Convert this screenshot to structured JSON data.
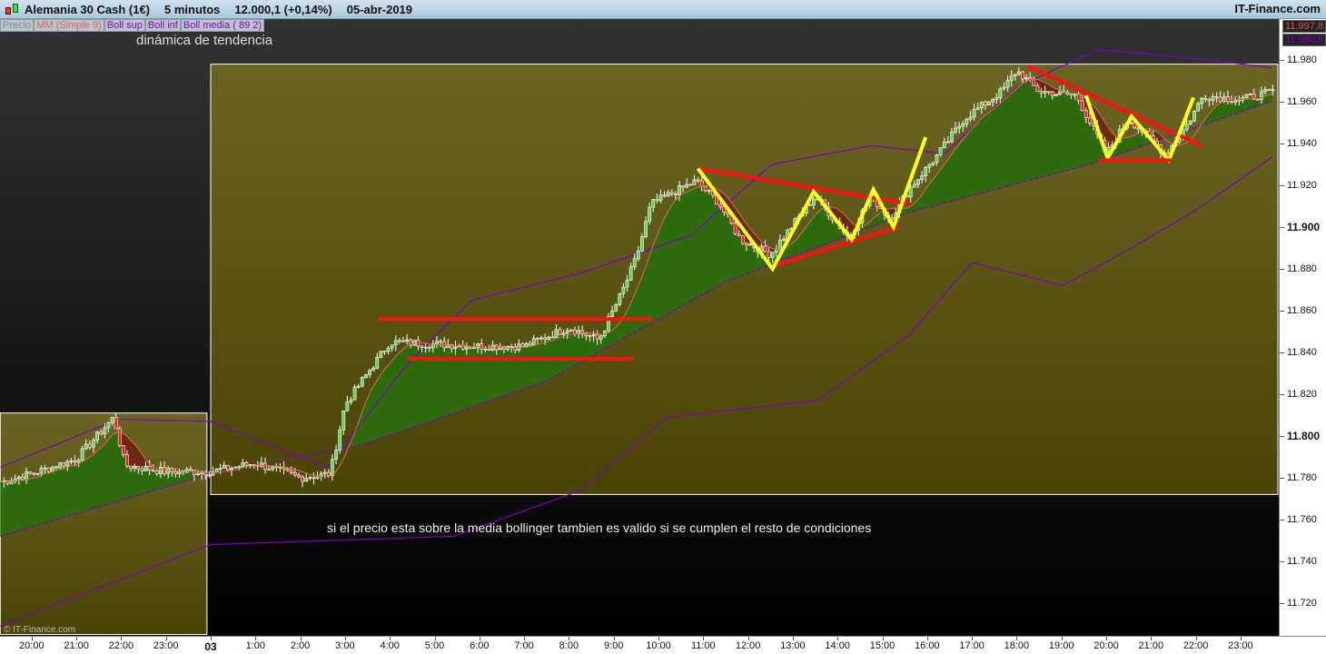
{
  "header": {
    "instrument": "Alemania 30 Cash (1€)",
    "timeframe": "5 minutos",
    "quote": "12.000,1 (+0,14%)",
    "date": "05-abr-2019",
    "brand": "IT-Finance.com",
    "icon": "candlestick-icon"
  },
  "legend": [
    {
      "label": "Precio",
      "color": "#8a8a8a"
    },
    {
      "label": "MM (Simple 9)",
      "color": "#e86060"
    },
    {
      "label": "Boll sup",
      "color": "#8a00c8"
    },
    {
      "label": "Boll inf",
      "color": "#8a00c8"
    },
    {
      "label": "Boll media ( 89 2)",
      "color": "#8a00c8"
    }
  ],
  "annotations": {
    "title_text": "dinámica de tendencia",
    "note": "si el precio esta sobre la media bollinger tambien es valido si se cumplen el resto de condiciones",
    "watermark": "© IT-Finance.com"
  },
  "last_prices": [
    {
      "value": "11.997,8",
      "color": "#e05050"
    },
    {
      "value": "11.990,8",
      "color": "#8a00c8"
    }
  ],
  "chart_data": {
    "type": "candlestick",
    "timeframe": "5 minutos",
    "ylim": [
      11.705,
      11.992
    ],
    "y_ticks": [
      "11.980",
      "11.960",
      "11.940",
      "11.920",
      "11.900",
      "11.880",
      "11.860",
      "11.840",
      "11.820",
      "11.800",
      "11.780",
      "11.760",
      "11.740",
      "11.720"
    ],
    "y_ticks_bold": [
      "11.900",
      "11.800"
    ],
    "x_ticks": [
      "20:00",
      "21:00",
      "22:00",
      "23:00",
      "03",
      "1:00",
      "2:00",
      "3:00",
      "4:00",
      "5:00",
      "6:00",
      "7:00",
      "8:00",
      "9:00",
      "10:00",
      "11:00",
      "12:00",
      "13:00",
      "14:00",
      "15:00",
      "16:00",
      "17:00",
      "18:00",
      "19:00",
      "20:00",
      "21:00",
      "22:00",
      "23:00"
    ],
    "colors": {
      "up": "#5fd35f",
      "down": "#e82020",
      "mm": "#d07050",
      "boll": "#8000c0",
      "fill_up": "#2d6b0c",
      "fill_down": "#6a2a10",
      "zone": "#6b6524"
    },
    "close_path": [
      [
        "02 19:20",
        11.778
      ],
      [
        "02 20:00",
        11.782
      ],
      [
        "02 21:00",
        11.789
      ],
      [
        "02 21:50",
        11.809
      ],
      [
        "02 22:05",
        11.786
      ],
      [
        "02 23:00",
        11.783
      ],
      [
        "03 00:00",
        11.783
      ],
      [
        "03 01:00",
        11.787
      ],
      [
        "03 02:00",
        11.78
      ],
      [
        "03 02:40",
        11.782
      ],
      [
        "03 03:00",
        11.815
      ],
      [
        "03 03:30",
        11.83
      ],
      [
        "03 04:00",
        11.845
      ],
      [
        "03 05:00",
        11.844
      ],
      [
        "03 06:00",
        11.843
      ],
      [
        "03 07:00",
        11.843
      ],
      [
        "03 08:00",
        11.852
      ],
      [
        "03 08:40",
        11.846
      ],
      [
        "03 09:10",
        11.868
      ],
      [
        "03 09:30",
        11.885
      ],
      [
        "03 09:50",
        11.911
      ],
      [
        "03 10:50",
        11.922
      ],
      [
        "03 11:20",
        11.912
      ],
      [
        "03 11:50",
        11.894
      ],
      [
        "03 12:30",
        11.887
      ],
      [
        "03 13:30",
        11.915
      ],
      [
        "03 14:15",
        11.895
      ],
      [
        "03 14:45",
        11.915
      ],
      [
        "03 15:10",
        11.904
      ],
      [
        "03 15:40",
        11.92
      ],
      [
        "03 16:15",
        11.935
      ],
      [
        "03 16:50",
        11.952
      ],
      [
        "03 17:40",
        11.965
      ],
      [
        "03 18:00",
        11.975
      ],
      [
        "03 18:30",
        11.965
      ],
      [
        "03 19:20",
        11.963
      ],
      [
        "03 20:00",
        11.935
      ],
      [
        "03 20:30",
        11.952
      ],
      [
        "03 21:20",
        11.935
      ],
      [
        "03 21:50",
        11.95
      ],
      [
        "03 22:10",
        11.963
      ],
      [
        "03 23:00",
        11.961
      ],
      [
        "03 23:45",
        11.965
      ]
    ],
    "boll_media": [
      [
        "02 19:18",
        11.752
      ],
      [
        "03 00:00",
        11.782
      ],
      [
        "03 03:24",
        11.796
      ],
      [
        "03 07:28",
        11.826
      ],
      [
        "03 11:31",
        11.874
      ],
      [
        "03 15:35",
        11.907
      ],
      [
        "03 19:38",
        11.93
      ],
      [
        "03 23:48",
        11.961
      ]
    ],
    "boll_inf": [
      [
        "02 19:18",
        11.709
      ],
      [
        "03 00:00",
        11.748
      ],
      [
        "03 05:26",
        11.752
      ],
      [
        "03 08:16",
        11.774
      ],
      [
        "03 10:12",
        11.809
      ],
      [
        "03 13:33",
        11.817
      ],
      [
        "03 15:35",
        11.848
      ],
      [
        "03 17:00",
        11.883
      ],
      [
        "03 19:02",
        11.872
      ],
      [
        "03 20:39",
        11.891
      ],
      [
        "03 22:04",
        11.909
      ],
      [
        "03 23:48",
        11.935
      ]
    ],
    "boll_sup": [
      [
        "02 19:18",
        11.785
      ],
      [
        "02 21:56",
        11.808
      ],
      [
        "03 00:00",
        11.807
      ],
      [
        "03 02:36",
        11.785
      ],
      [
        "03 04:25",
        11.835
      ],
      [
        "03 05:50",
        11.865
      ],
      [
        "03 08:16",
        11.878
      ],
      [
        "03 10:43",
        11.896
      ],
      [
        "03 12:32",
        11.93
      ],
      [
        "03 14:46",
        11.939
      ],
      [
        "03 16:23",
        11.935
      ],
      [
        "03 18:00",
        11.967
      ],
      [
        "03 19:50",
        11.985
      ],
      [
        "03 22:16",
        11.98
      ],
      [
        "03 23:48",
        11.976
      ]
    ],
    "zones": [
      {
        "from": "03 00:00",
        "to": "03 23:50",
        "high": 11.978,
        "low": 11.772
      },
      {
        "from": "02 19:18",
        "to": "02 23:55",
        "high": 11.811,
        "low": 11.705
      }
    ],
    "drawings": [
      {
        "color": "#ff1010",
        "points": [
          [
            "03 03:44",
            11.856
          ],
          [
            "03 09:52",
            11.856
          ]
        ]
      },
      {
        "color": "#ff1010",
        "points": [
          [
            "03 04:23",
            11.837
          ],
          [
            "03 09:27",
            11.837
          ]
        ]
      },
      {
        "color": "#ff1010",
        "points": [
          [
            "03 10:55",
            11.928
          ],
          [
            "03 15:38",
            11.911
          ]
        ]
      },
      {
        "color": "#ff1010",
        "points": [
          [
            "03 12:38",
            11.882
          ],
          [
            "03 15:23",
            11.9
          ]
        ]
      },
      {
        "color": "#ffff20",
        "points": [
          [
            "03 10:53",
            11.928
          ],
          [
            "03 12:33",
            11.88
          ],
          [
            "03 13:28",
            11.917
          ],
          [
            "03 14:19",
            11.894
          ],
          [
            "03 14:48",
            11.918
          ],
          [
            "03 15:15",
            11.9
          ],
          [
            "03 15:58",
            11.943
          ]
        ]
      },
      {
        "color": "#ff1010",
        "points": [
          [
            "03 18:15",
            11.977
          ],
          [
            "03 22:08",
            11.939
          ]
        ]
      },
      {
        "color": "#ffff20",
        "points": [
          [
            "03 19:33",
            11.963
          ],
          [
            "03 20:02",
            11.933
          ],
          [
            "03 20:34",
            11.953
          ],
          [
            "03 21:24",
            11.932
          ],
          [
            "03 21:57",
            11.962
          ]
        ]
      },
      {
        "color": "#ff1010",
        "points": [
          [
            "03 19:50",
            11.932
          ],
          [
            "03 21:27",
            11.932
          ]
        ]
      }
    ]
  }
}
